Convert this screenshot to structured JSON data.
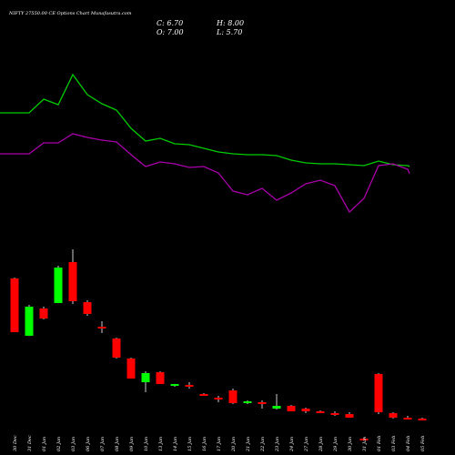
{
  "header": {
    "title": "NIFTY 27550.00 CE Options  Chart Munafasutra.com",
    "close": "C: 6.70",
    "high": "H: 8.00",
    "open": "O: 7.00",
    "low": "L: 5.70"
  },
  "chart_data": {
    "type": "candlestick",
    "title": "NIFTY 27550.00 CE Options  Chart Munafasutra.com",
    "up_color": "#00ff00",
    "down_color": "#ff0000",
    "categories": [
      "30 Dec",
      "31 Dec",
      "01 Jan",
      "02 Jan",
      "03 Jan",
      "06 Jan",
      "07 Jan",
      "08 Jan",
      "09 Jan",
      "10 Jan",
      "13 Jan",
      "14 Jan",
      "15 Jan",
      "16 Jan",
      "17 Jan",
      "20 Jan",
      "21 Jan",
      "22 Jan",
      "23 Jan",
      "24 Jan",
      "27 Jan",
      "28 Jan",
      "29 Jan",
      "30 Jan",
      "31 Jan",
      "01 Feb",
      "03 Feb",
      "04 Feb",
      "05 Feb"
    ],
    "candles": [
      {
        "o": 134,
        "h": 135,
        "l": 75,
        "c": 75,
        "color": "down"
      },
      {
        "o": 71,
        "h": 105,
        "l": 71,
        "c": 103,
        "color": "up"
      },
      {
        "o": 101,
        "h": 103,
        "l": 89,
        "c": 90,
        "color": "down"
      },
      {
        "o": 107,
        "h": 148,
        "l": 107,
        "c": 146,
        "color": "up"
      },
      {
        "o": 152,
        "h": 166,
        "l": 106,
        "c": 109,
        "color": "down"
      },
      {
        "o": 108,
        "h": 110,
        "l": 93,
        "c": 95,
        "color": "down"
      },
      {
        "o": 81,
        "h": 87,
        "l": 74,
        "c": 80,
        "color": "down"
      },
      {
        "o": 68,
        "h": 69,
        "l": 46,
        "c": 47,
        "color": "down"
      },
      {
        "o": 46,
        "h": 47,
        "l": 24,
        "c": 24,
        "color": "down"
      },
      {
        "o": 20,
        "h": 32,
        "l": 9,
        "c": 30,
        "color": "up"
      },
      {
        "o": 31,
        "h": 32,
        "l": 18,
        "c": 18,
        "color": "down"
      },
      {
        "o": 17,
        "h": 18,
        "l": 15,
        "c": 18,
        "color": "up"
      },
      {
        "o": 17,
        "h": 20,
        "l": 13,
        "c": 15,
        "color": "down"
      },
      {
        "o": 7,
        "h": 8,
        "l": 5,
        "c": 6,
        "color": "down"
      },
      {
        "o": 3,
        "h": 5,
        "l": -2,
        "c": 1,
        "color": "down"
      },
      {
        "o": 11,
        "h": 13,
        "l": -4,
        "c": -3,
        "color": "down"
      },
      {
        "o": -3,
        "h": 0,
        "l": -4,
        "c": -1,
        "color": "up"
      },
      {
        "o": -2,
        "h": 0,
        "l": -9,
        "c": -3,
        "color": "down"
      },
      {
        "o": -9,
        "h": 7,
        "l": -10,
        "c": -6,
        "color": "up"
      },
      {
        "o": -6,
        "h": -5,
        "l": -12,
        "c": -12,
        "color": "down"
      },
      {
        "o": -9,
        "h": -8,
        "l": -14,
        "c": -12,
        "color": "down"
      },
      {
        "o": -12,
        "h": -11,
        "l": -14,
        "c": -14,
        "color": "down"
      },
      {
        "o": -14,
        "h": -12,
        "l": -17,
        "c": -15,
        "color": "down"
      },
      {
        "o": -15,
        "h": -13,
        "l": -19,
        "c": -19,
        "color": "down"
      },
      {
        "o": -42,
        "h": -41,
        "l": -44,
        "c": -43,
        "color": "down"
      },
      {
        "o": 29,
        "h": 30,
        "l": -15,
        "c": -13,
        "color": "down"
      },
      {
        "o": -14,
        "h": -13,
        "l": -20,
        "c": -19,
        "color": "down"
      },
      {
        "o": -19,
        "h": -17,
        "l": -21,
        "c": -20,
        "color": "down"
      },
      {
        "o": -20,
        "h": -19,
        "l": -21,
        "c": -20,
        "color": "down"
      }
    ],
    "ma_short": {
      "color": "#aa00aa",
      "values": [
        169,
        169,
        157,
        157,
        147,
        151,
        154,
        156,
        170,
        183,
        178,
        180,
        184,
        183,
        190,
        210,
        214,
        207,
        220,
        212,
        202,
        198,
        204,
        233,
        218,
        182,
        180,
        186,
        191
      ]
    },
    "ma_long": {
      "color": "#00cc00",
      "values": [
        124,
        124,
        109,
        115,
        82,
        104,
        114,
        121,
        141,
        155,
        152,
        158,
        159,
        163,
        167,
        169,
        170,
        170,
        171,
        176,
        179,
        180,
        180,
        181,
        182,
        177,
        181,
        182,
        183
      ]
    }
  }
}
